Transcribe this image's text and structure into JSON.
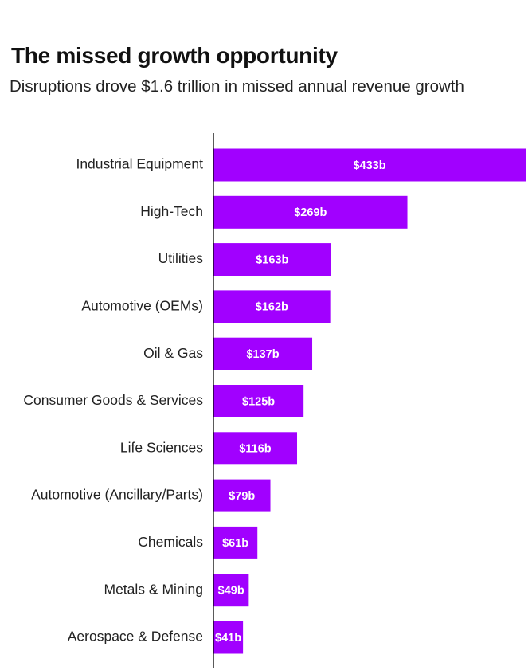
{
  "header": {
    "title": "The missed growth opportunity",
    "subtitle": "Disruptions drove $1.6 trillion in missed annual revenue growth"
  },
  "colors": {
    "bar": "#a100ff",
    "axis": "#000000",
    "label_text": "#ffffff"
  },
  "chart_data": {
    "type": "bar",
    "orientation": "horizontal",
    "title": "The missed growth opportunity",
    "subtitle": "Disruptions drove $1.6 trillion in missed annual revenue growth",
    "xlabel": "",
    "ylabel": "",
    "unit": "$b",
    "categories": [
      "Industrial Equipment",
      "High-Tech",
      "Utilities",
      "Automotive (OEMs)",
      "Oil & Gas",
      "Consumer Goods & Services",
      "Life Sciences",
      "Automotive (Ancillary/Parts)",
      "Chemicals",
      "Metals & Mining",
      "Aerospace & Defense"
    ],
    "values": [
      433,
      269,
      163,
      162,
      137,
      125,
      116,
      79,
      61,
      49,
      41
    ],
    "data_labels": [
      "$433b",
      "$269b",
      "$163b",
      "$162b",
      "$137b",
      "$125b",
      "$116b",
      "$79b",
      "$61b",
      "$49b",
      "$41b"
    ],
    "xlim": [
      0,
      433
    ],
    "grid": false,
    "legend": "none"
  }
}
